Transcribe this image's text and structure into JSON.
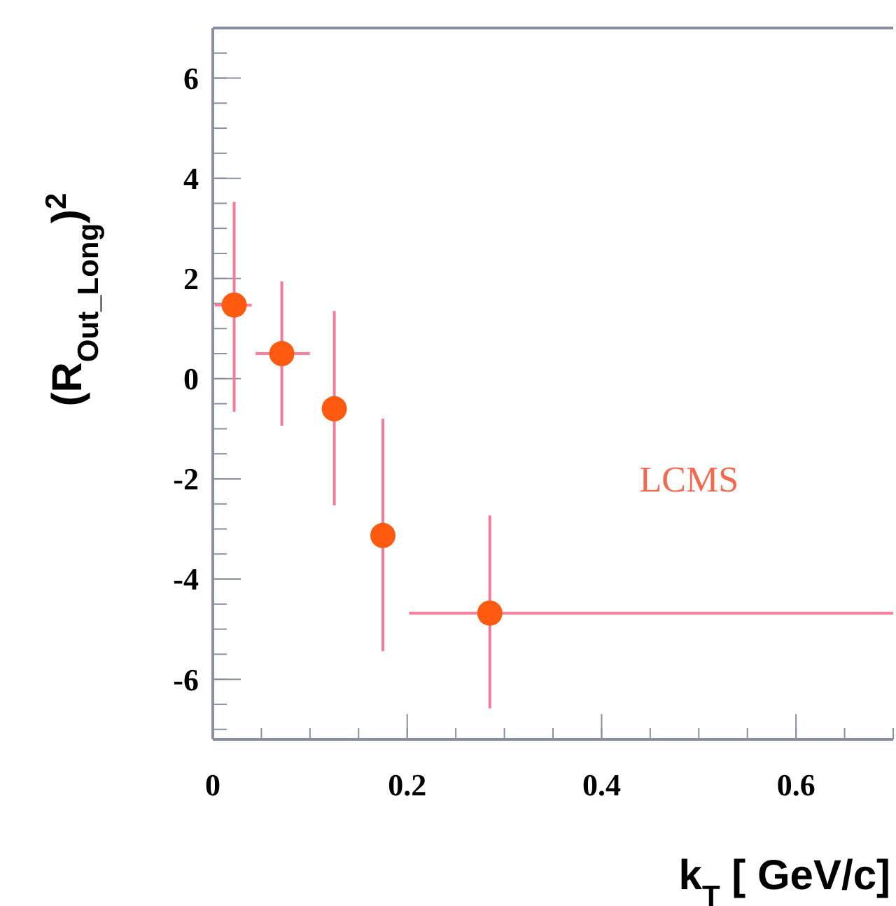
{
  "chart_data": {
    "type": "scatter",
    "xlabel": "k$_{T}$ [ GeV/c]",
    "ylabel": "(R$_{Out_Long}$)$^{2}$",
    "x": [
      0.022,
      0.071,
      0.125,
      0.175,
      0.285
    ],
    "values": [
      1.47,
      0.5,
      -0.6,
      -3.13,
      -4.68
    ],
    "errors": [
      [
        -0.66,
        3.53
      ],
      [
        -0.94,
        1.94
      ],
      [
        -2.53,
        1.35
      ],
      [
        -5.44,
        -0.8
      ],
      [
        -6.58,
        -2.73
      ]
    ],
    "xerrors": [
      [
        0.002,
        0.04
      ],
      [
        0.044,
        0.1
      ],
      null,
      null,
      [
        0.202,
        0.7
      ]
    ],
    "color": "#ff5a10",
    "marker": "circle",
    "grid": false,
    "xlim": [
      0,
      0.7
    ],
    "ylim": [
      -7.2,
      7
    ],
    "xticks": [
      0,
      0.2,
      0.4,
      0.6
    ],
    "yticks": [
      -6,
      -4,
      -2,
      0,
      2,
      4,
      6
    ],
    "annotations": [
      "LCMS"
    ]
  }
}
